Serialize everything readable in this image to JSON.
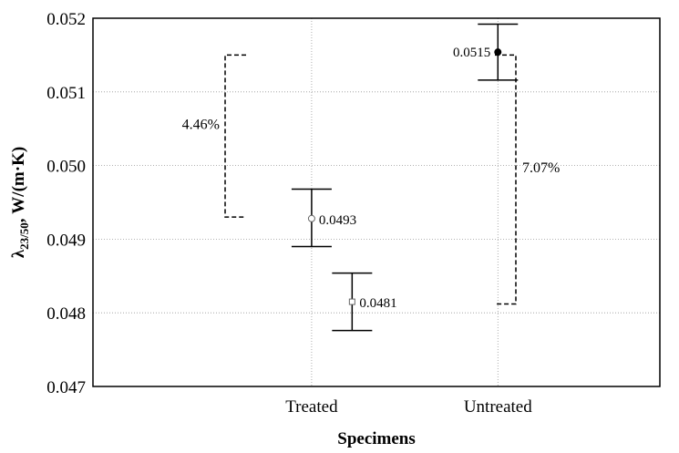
{
  "chart_data": {
    "type": "scatter",
    "xlabel": "Specimens",
    "ylabel_main": "λ",
    "ylabel_sub": "23/50",
    "ylabel_rest": ", W/(m·K)",
    "ylim": [
      0.047,
      0.052
    ],
    "yticks": [
      0.047,
      0.048,
      0.049,
      0.05,
      0.051,
      0.052
    ],
    "ytick_labels": [
      "0.047",
      "0.048",
      "0.049",
      "0.050",
      "0.051",
      "0.052"
    ],
    "categories": [
      "Treated",
      "Untreated"
    ],
    "grid": true,
    "points": [
      {
        "category_pos": 1.85,
        "y": 0.04928,
        "err_low": 0.0489,
        "err_high": 0.04968,
        "label": "0.0493",
        "marker": "circle-open",
        "label_side": "right"
      },
      {
        "category_pos": 2.1,
        "y": 0.04815,
        "err_low": 0.04776,
        "err_high": 0.04854,
        "label": "0.0481",
        "marker": "square-open",
        "label_side": "right"
      },
      {
        "category_pos": 3.0,
        "y": 0.05154,
        "err_low": 0.05116,
        "err_high": 0.05192,
        "label": "0.0515",
        "marker": "circle-filled",
        "label_side": "left"
      }
    ],
    "brackets": [
      {
        "label": "4.46%",
        "y_top": 0.0515,
        "y_bottom": 0.0493,
        "side": "left",
        "ref": 0
      },
      {
        "label": "7.07%",
        "y_top": 0.0515,
        "y_bottom": 0.04812,
        "side": "right",
        "ref": 1
      }
    ]
  }
}
